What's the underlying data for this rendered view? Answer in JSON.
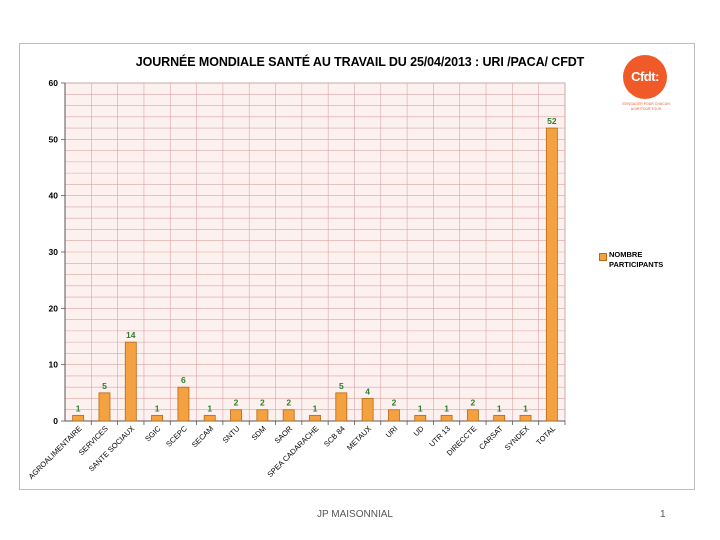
{
  "title": "JOURNÉE MONDIALE SANTÉ AU TRAVAIL DU 25/04/2013 :   URI /PACA/ CFDT",
  "logo": {
    "text": "Cfdt:",
    "tagline_1": "S'ENGAGER POUR CHACUN",
    "tagline_2": "AGIR POUR TOUS"
  },
  "footer": {
    "author": "JP MAISONNIAL",
    "page_number": "1"
  },
  "colors": {
    "bar_fill": "#f4a142",
    "bar_stroke": "#b36a1a",
    "data_label": "#2e7d2e",
    "grid_line": "#d9a5a5",
    "plot_bg": "#fdf1ef",
    "logo": "#f05a28"
  },
  "chart_data": {
    "type": "bar",
    "title": "JOURNÉE MONDIALE SANTÉ AU TRAVAIL DU 25/04/2013 :   URI /PACA/ CFDT",
    "xlabel": "",
    "ylabel": "",
    "ylim": [
      0,
      60
    ],
    "yticks": [
      0,
      10,
      20,
      30,
      40,
      50,
      60
    ],
    "grid": true,
    "legend_position": "right",
    "categories": [
      "AGROALIMENTAIRE",
      "SERVICES",
      "SANTE SOCIAUX",
      "SGIC",
      "SCEPC",
      "SECAM",
      "SNTU",
      "SDM",
      "SAOR",
      "SPEA CADARACHE",
      "SCB 84",
      "METAUX",
      "URI",
      "UD",
      "UTR 13",
      "DIRECCTE",
      "CARSAT",
      "SYNDEX",
      "TOTAL"
    ],
    "series": [
      {
        "name": "NOMBRE PARTICIPANTS",
        "values": [
          1,
          5,
          14,
          1,
          6,
          1,
          2,
          2,
          2,
          1,
          5,
          4,
          2,
          1,
          1,
          2,
          1,
          1,
          52
        ]
      }
    ]
  }
}
